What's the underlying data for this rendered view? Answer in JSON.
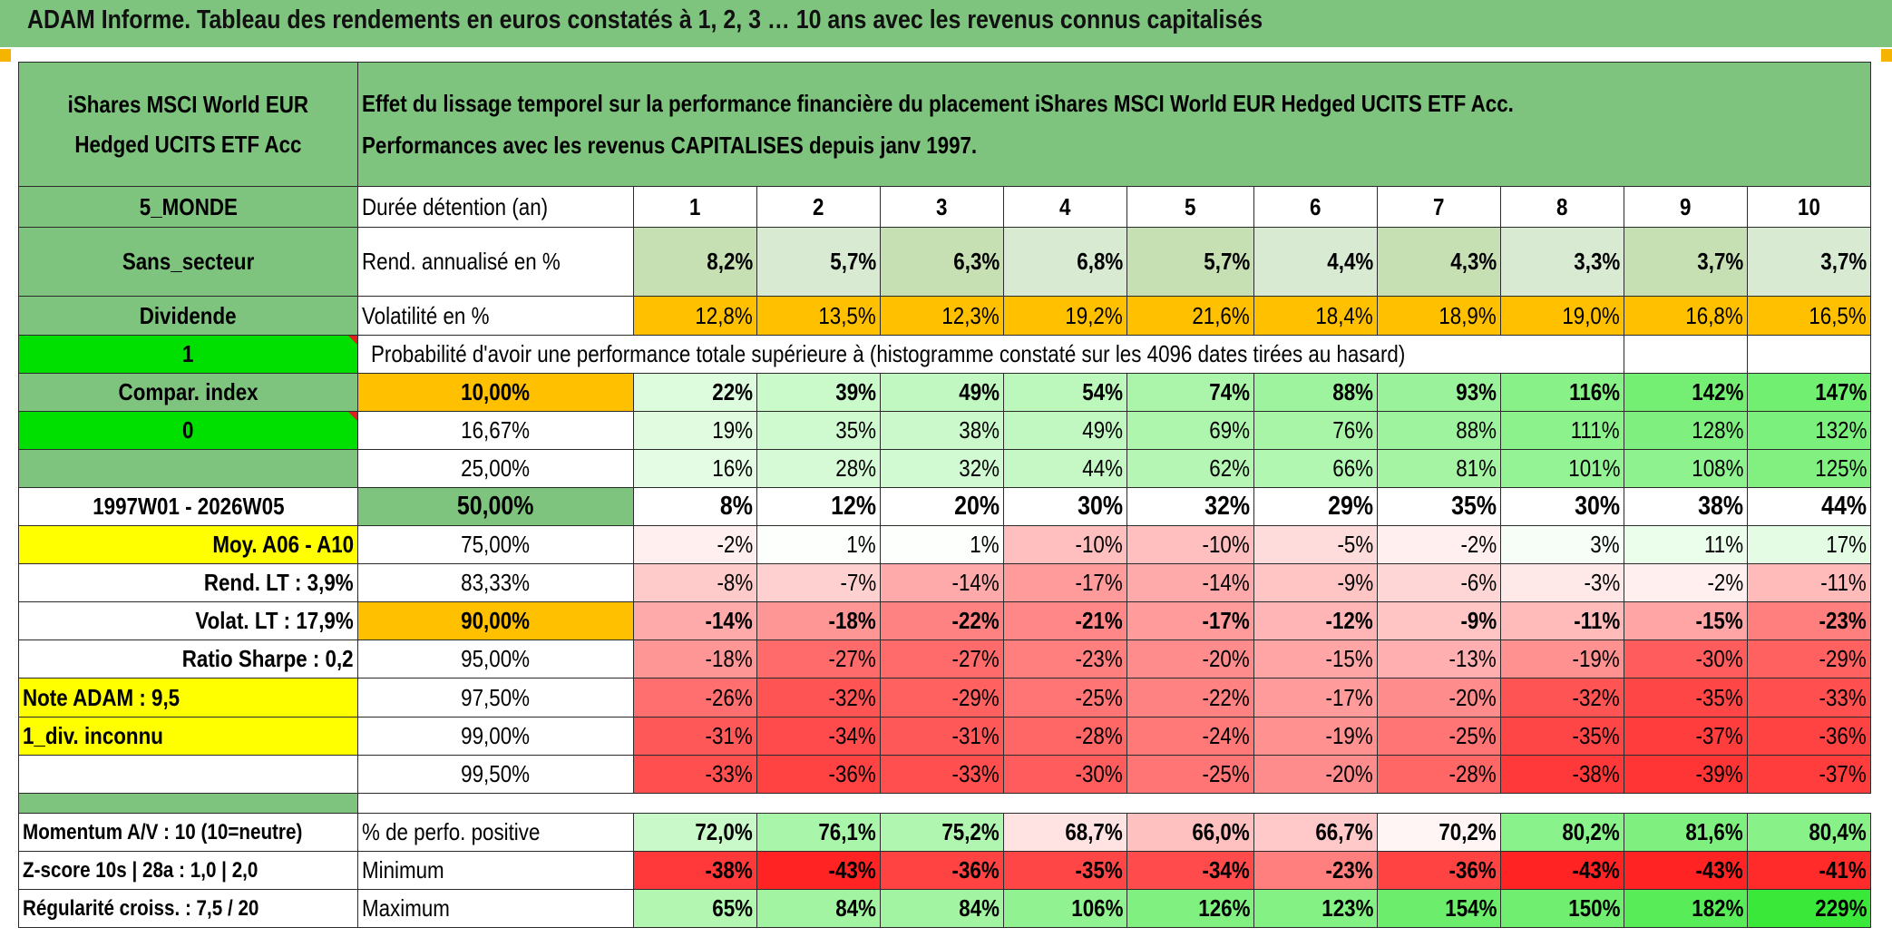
{
  "title": "ADAM Informe. Tableau des rendements en euros constatés à 1, 2, 3 … 10 ans avec les revenus connus capitalisés",
  "header": {
    "fund_name_line1": "iShares MSCI World EUR",
    "fund_name_line2": "Hedged UCITS ETF Acc",
    "desc_line1": "Effet du lissage temporel sur la performance financière du placement iShares MSCI World EUR Hedged UCITS ETF Acc.",
    "desc_line2": "Performances avec les revenus CAPITALISES depuis janv 1997."
  },
  "left": {
    "zone": "5_MONDE",
    "secteur": "Sans_secteur",
    "dividende": "Dividende",
    "value_1": "1",
    "compar_index": "Compar. index",
    "value_0": "0",
    "period": "1997W01 - 2026W05",
    "moy": "Moy. A06 - A10",
    "rend_lt": "Rend. LT :   3,9%",
    "volat_lt": "Volat. LT :   17,9%",
    "sharpe": "Ratio Sharpe :   0,2",
    "note": "Note ADAM : 9,5",
    "div": "1_div. inconnu",
    "momentum": "Momentum A/V : 10 (10=neutre)",
    "zscore": "Z-score 10s | 28a : 1,0 | 2,0",
    "regularite": "Régularité croiss. : 7,5 / 20"
  },
  "duree": {
    "label": "Durée détention (an)",
    "years": [
      "1",
      "2",
      "3",
      "4",
      "5",
      "6",
      "7",
      "8",
      "9",
      "10"
    ]
  },
  "rend": {
    "label": "Rend. annualisé en %",
    "values": [
      "8,2%",
      "5,7%",
      "6,3%",
      "6,8%",
      "5,7%",
      "4,4%",
      "4,3%",
      "3,3%",
      "3,7%",
      "3,7%"
    ]
  },
  "vol": {
    "label": "Volatilité en %",
    "values": [
      "12,8%",
      "13,5%",
      "12,3%",
      "19,2%",
      "21,6%",
      "18,4%",
      "18,9%",
      "19,0%",
      "16,8%",
      "16,5%"
    ]
  },
  "proba_header": "Probabilité d'avoir une performance totale supérieure à (histogramme constaté sur les 4096 dates tirées au hasard)",
  "proba_rows": [
    {
      "label": "10,00%",
      "values": [
        "22%",
        "39%",
        "49%",
        "54%",
        "74%",
        "88%",
        "93%",
        "116%",
        "142%",
        "147%"
      ]
    },
    {
      "label": "16,67%",
      "values": [
        "19%",
        "35%",
        "38%",
        "49%",
        "69%",
        "76%",
        "88%",
        "111%",
        "128%",
        "132%"
      ]
    },
    {
      "label": "25,00%",
      "values": [
        "16%",
        "28%",
        "32%",
        "44%",
        "62%",
        "66%",
        "81%",
        "101%",
        "108%",
        "125%"
      ]
    },
    {
      "label": "50,00%",
      "values": [
        "8%",
        "12%",
        "20%",
        "30%",
        "32%",
        "29%",
        "35%",
        "30%",
        "38%",
        "44%"
      ]
    },
    {
      "label": "75,00%",
      "values": [
        "-2%",
        "1%",
        "1%",
        "-10%",
        "-10%",
        "-5%",
        "-2%",
        "3%",
        "11%",
        "17%"
      ]
    },
    {
      "label": "83,33%",
      "values": [
        "-8%",
        "-7%",
        "-14%",
        "-17%",
        "-14%",
        "-9%",
        "-6%",
        "-3%",
        "-2%",
        "-11%"
      ]
    },
    {
      "label": "90,00%",
      "values": [
        "-14%",
        "-18%",
        "-22%",
        "-21%",
        "-17%",
        "-12%",
        "-9%",
        "-11%",
        "-15%",
        "-23%"
      ]
    },
    {
      "label": "95,00%",
      "values": [
        "-18%",
        "-27%",
        "-27%",
        "-23%",
        "-20%",
        "-15%",
        "-13%",
        "-19%",
        "-30%",
        "-29%"
      ]
    },
    {
      "label": "97,50%",
      "values": [
        "-26%",
        "-32%",
        "-29%",
        "-25%",
        "-22%",
        "-17%",
        "-20%",
        "-32%",
        "-35%",
        "-33%"
      ]
    },
    {
      "label": "99,00%",
      "values": [
        "-31%",
        "-34%",
        "-31%",
        "-28%",
        "-24%",
        "-19%",
        "-25%",
        "-35%",
        "-37%",
        "-36%"
      ]
    },
    {
      "label": "99,50%",
      "values": [
        "-33%",
        "-36%",
        "-33%",
        "-30%",
        "-25%",
        "-20%",
        "-28%",
        "-38%",
        "-39%",
        "-37%"
      ]
    }
  ],
  "positive": {
    "label": "% de perfo. positive",
    "values": [
      "72,0%",
      "76,1%",
      "75,2%",
      "68,7%",
      "66,0%",
      "66,7%",
      "70,2%",
      "80,2%",
      "81,6%",
      "80,4%"
    ]
  },
  "minimum": {
    "label": "Minimum",
    "values": [
      "-38%",
      "-43%",
      "-36%",
      "-35%",
      "-34%",
      "-23%",
      "-36%",
      "-43%",
      "-43%",
      "-41%"
    ]
  },
  "maximum": {
    "label": "Maximum",
    "values": [
      "65%",
      "84%",
      "84%",
      "106%",
      "126%",
      "123%",
      "154%",
      "150%",
      "182%",
      "229%"
    ]
  },
  "colors": {
    "header_green": "#7ec47e",
    "bright_green": "#00e000",
    "yellow": "#ffff00",
    "orange": "#ffc000",
    "label_red": "#d81c1c"
  }
}
